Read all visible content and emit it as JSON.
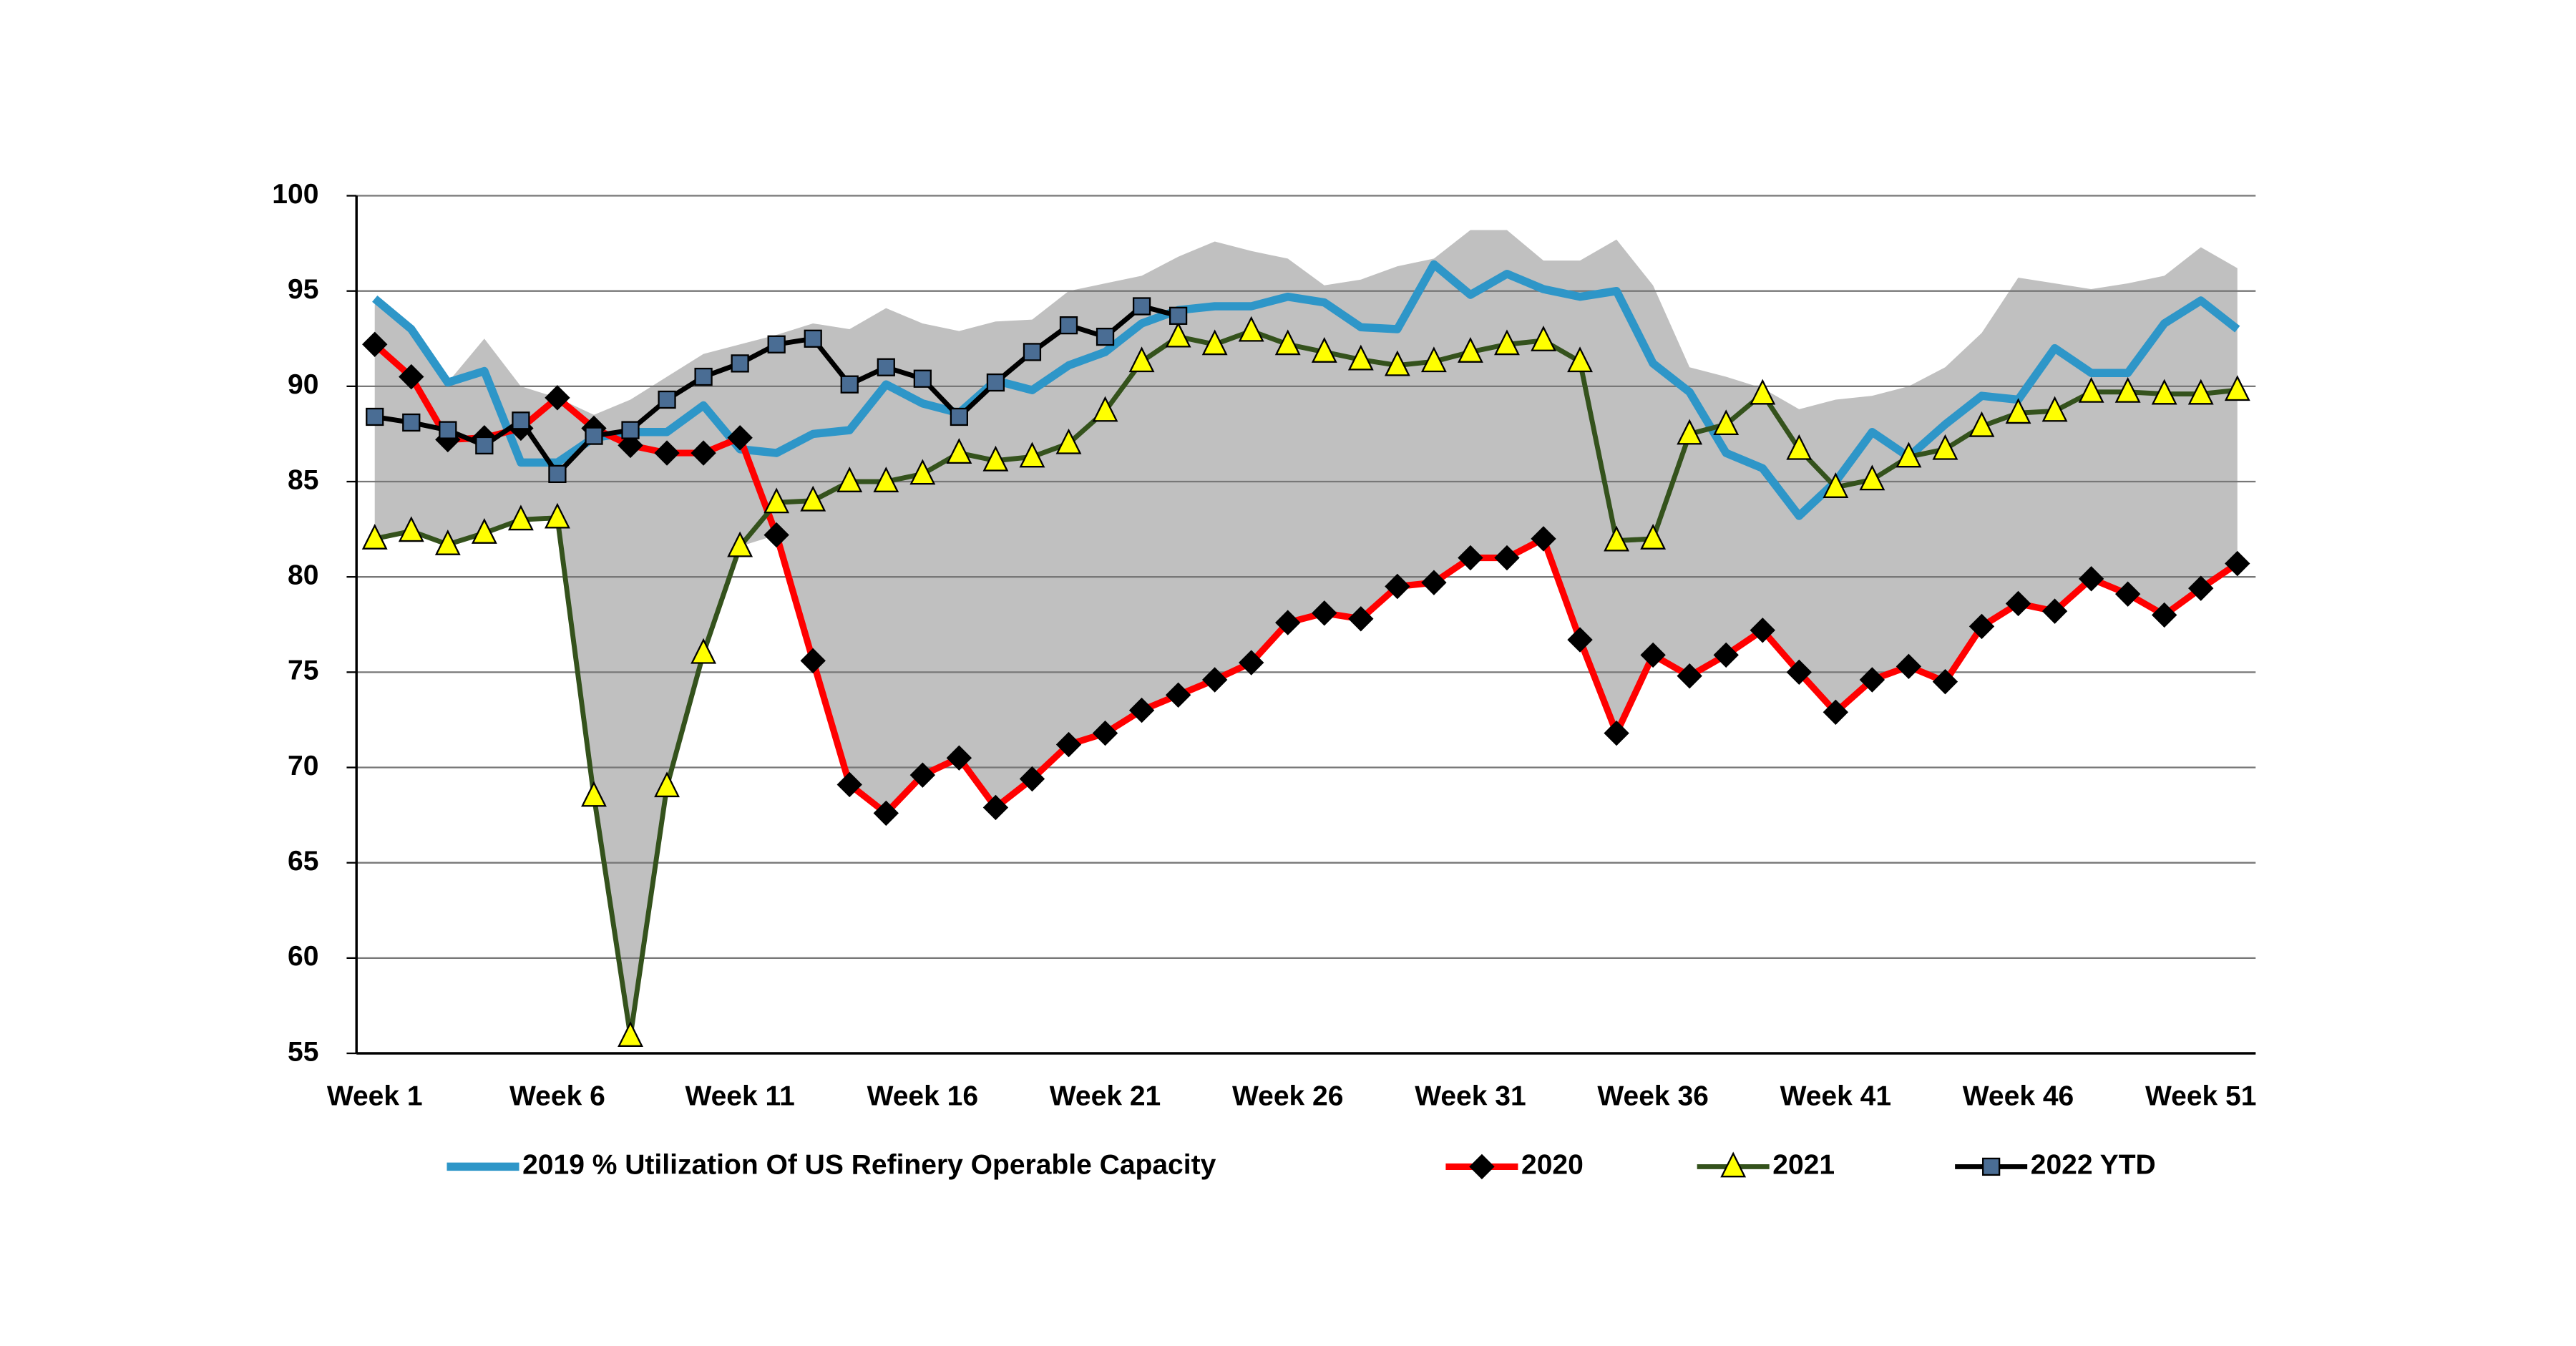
{
  "chart_data": {
    "type": "line",
    "categories": [
      "Week 1",
      null,
      null,
      null,
      null,
      "Week 6",
      null,
      null,
      null,
      null,
      "Week 11",
      null,
      null,
      null,
      null,
      "Week 16",
      null,
      null,
      null,
      null,
      "Week 21",
      null,
      null,
      null,
      null,
      "Week 26",
      null,
      null,
      null,
      null,
      "Week 31",
      null,
      null,
      null,
      null,
      "Week 36",
      null,
      null,
      null,
      null,
      "Week 41",
      null,
      null,
      null,
      null,
      "Week 46",
      null,
      null,
      null,
      null,
      "Week 51",
      null
    ],
    "ylim": [
      55,
      100
    ],
    "yticks": [
      55,
      60,
      65,
      70,
      75,
      80,
      85,
      90,
      95,
      100
    ],
    "grid": true,
    "legend": "bottom",
    "band": {
      "color": "#c0c0c0",
      "upper": [
        94.6,
        93.0,
        90.2,
        92.5,
        90.0,
        89.4,
        88.5,
        89.3,
        90.5,
        91.7,
        92.2,
        92.7,
        93.3,
        93.0,
        94.1,
        93.3,
        92.9,
        93.4,
        93.5,
        95.0,
        95.4,
        95.8,
        96.8,
        97.6,
        97.1,
        96.7,
        95.3,
        95.6,
        96.3,
        96.7,
        98.2,
        98.2,
        96.6,
        96.6,
        97.7,
        95.3,
        91.0,
        90.5,
        89.9,
        88.8,
        89.3,
        89.5,
        90.0,
        91.0,
        92.8,
        95.7,
        95.4,
        95.1,
        95.4,
        95.8,
        97.3,
        96.2
      ],
      "lower": [
        82.0,
        82.4,
        81.7,
        82.3,
        83.0,
        83.1,
        68.5,
        55.9,
        69.0,
        76.0,
        81.6,
        82.2,
        75.6,
        69.1,
        67.6,
        69.6,
        70.5,
        67.9,
        69.4,
        71.2,
        71.8,
        73.0,
        73.8,
        74.6,
        75.5,
        77.6,
        78.1,
        77.8,
        79.5,
        79.7,
        81.0,
        81.0,
        82.0,
        76.7,
        71.8,
        75.9,
        74.8,
        75.9,
        77.2,
        75.0,
        72.9,
        74.6,
        75.3,
        74.5,
        77.4,
        78.6,
        78.2,
        79.9,
        79.1,
        78.0,
        79.4,
        80.7
      ]
    },
    "series": [
      {
        "name": "2019 % Utilization Of US Refinery Operable Capacity",
        "color": "#2e96c8",
        "width": 5,
        "marker": "none",
        "values": [
          94.6,
          93.0,
          90.2,
          90.8,
          86.0,
          86.0,
          87.3,
          87.6,
          87.6,
          89.0,
          86.7,
          86.5,
          87.5,
          87.7,
          90.1,
          89.1,
          88.6,
          90.3,
          89.8,
          91.1,
          91.8,
          93.3,
          94.0,
          94.2,
          94.2,
          94.7,
          94.4,
          93.1,
          93.0,
          96.4,
          94.8,
          95.9,
          95.1,
          94.7,
          95.0,
          91.2,
          89.7,
          86.5,
          85.7,
          83.2,
          85.0,
          87.6,
          86.3,
          88.0,
          89.5,
          89.3,
          92.0,
          90.7,
          90.7,
          93.3,
          94.5,
          93.0
        ]
      },
      {
        "name": "2020",
        "color": "#ff0000",
        "width": 4,
        "marker": "diamond",
        "marker_color": "#000000",
        "values": [
          92.2,
          90.5,
          87.2,
          87.3,
          87.8,
          89.4,
          87.8,
          86.9,
          86.5,
          86.5,
          87.3,
          82.2,
          75.6,
          69.1,
          67.6,
          69.6,
          70.5,
          67.9,
          69.4,
          71.2,
          71.8,
          73.0,
          73.8,
          74.6,
          75.5,
          77.6,
          78.1,
          77.8,
          79.5,
          79.7,
          81.0,
          81.0,
          82.0,
          76.7,
          71.8,
          75.9,
          74.8,
          75.9,
          77.2,
          75.0,
          72.9,
          74.6,
          75.3,
          74.5,
          77.4,
          78.6,
          78.2,
          79.9,
          79.1,
          78.0,
          79.4,
          80.7
        ]
      },
      {
        "name": "2021",
        "color": "#34521c",
        "width": 3,
        "marker": "triangle",
        "marker_color": "#ffff00",
        "values": [
          82.0,
          82.4,
          81.7,
          82.3,
          83.0,
          83.1,
          68.5,
          55.9,
          69.0,
          76.0,
          81.6,
          83.9,
          84.0,
          85.0,
          85.0,
          85.4,
          86.5,
          86.1,
          86.3,
          87.0,
          88.7,
          91.3,
          92.6,
          92.2,
          92.9,
          92.2,
          91.8,
          91.4,
          91.1,
          91.3,
          91.8,
          92.2,
          92.4,
          91.3,
          81.9,
          82.0,
          87.5,
          88.0,
          89.6,
          86.7,
          84.7,
          85.1,
          86.3,
          86.7,
          87.9,
          88.6,
          88.7,
          89.7,
          89.7,
          89.6,
          89.6,
          89.8
        ]
      },
      {
        "name": "2022 YTD",
        "color": "#000000",
        "width": 3,
        "marker": "square",
        "marker_color": "#4a6d94",
        "values": [
          88.4,
          88.1,
          87.7,
          86.9,
          88.2,
          85.4,
          87.4,
          87.7,
          89.3,
          90.5,
          91.2,
          92.2,
          92.5,
          90.1,
          91.0,
          90.4,
          88.4,
          90.2,
          91.8,
          93.2,
          92.6,
          94.2,
          93.7,
          null,
          null,
          null,
          null,
          null,
          null,
          null,
          null,
          null,
          null,
          null,
          null,
          null,
          null,
          null,
          null,
          null,
          null,
          null,
          null,
          null,
          null,
          null,
          null,
          null,
          null,
          null,
          null,
          null
        ]
      }
    ]
  }
}
